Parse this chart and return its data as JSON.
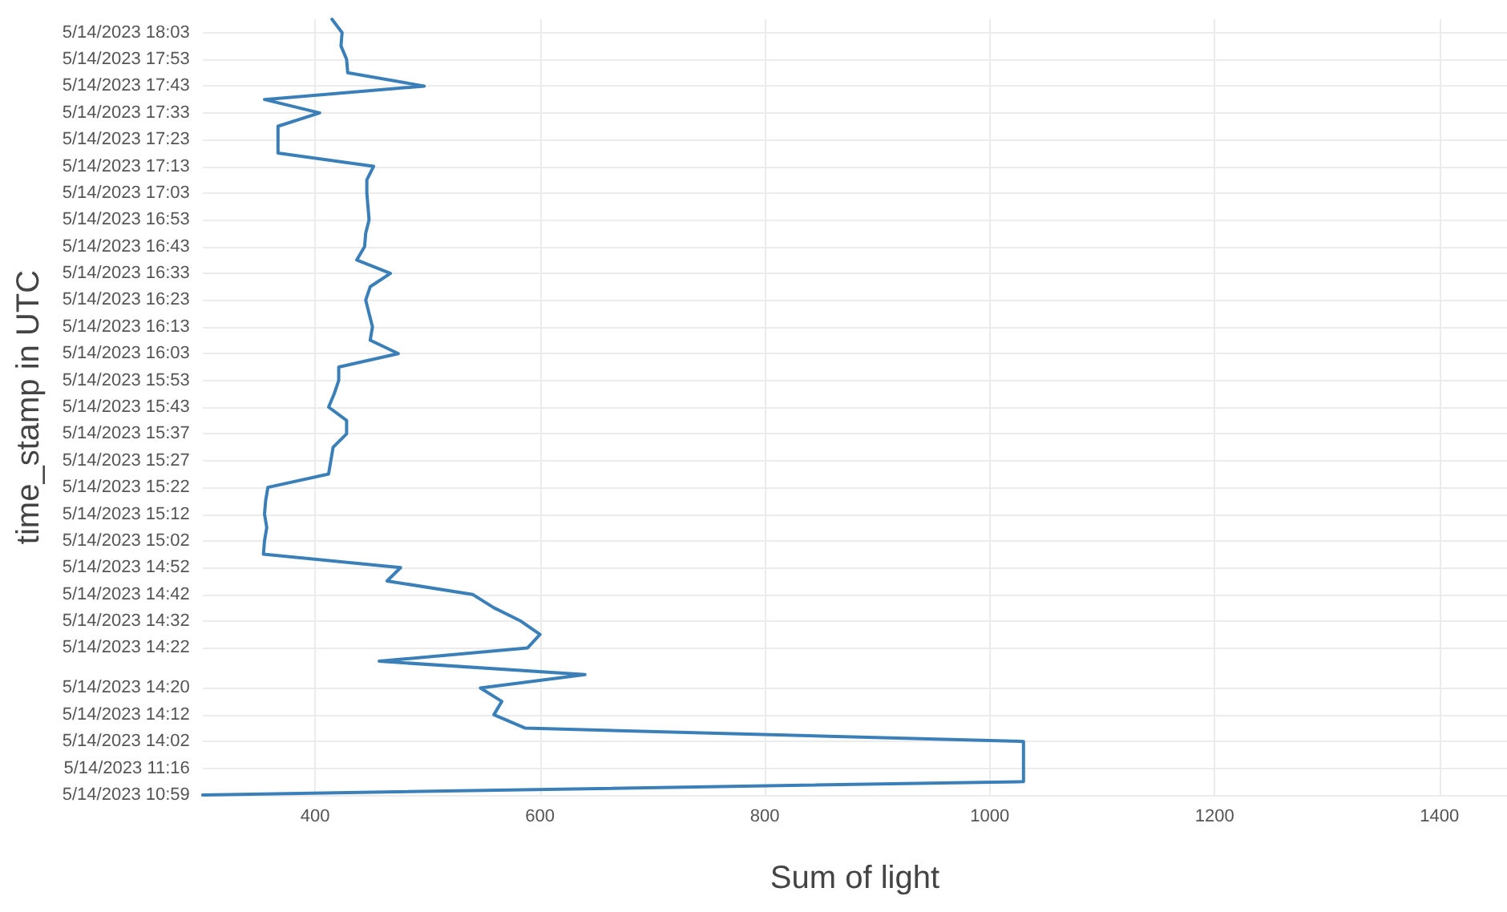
{
  "chart_data": {
    "type": "line",
    "orientation": "horizontal",
    "xlabel": "Sum of light",
    "ylabel": "time_stamp in UTC",
    "categories": [
      null,
      "5/14/2023 18:03",
      null,
      "5/14/2023 17:53",
      null,
      "5/14/2023 17:43",
      null,
      "5/14/2023 17:33",
      null,
      "5/14/2023 17:23",
      null,
      "5/14/2023 17:13",
      null,
      "5/14/2023 17:03",
      null,
      "5/14/2023 16:53",
      null,
      "5/14/2023 16:43",
      null,
      "5/14/2023 16:33",
      null,
      "5/14/2023 16:23",
      null,
      "5/14/2023 16:13",
      null,
      "5/14/2023 16:03",
      null,
      "5/14/2023 15:53",
      null,
      "5/14/2023 15:43",
      null,
      "5/14/2023 15:37",
      null,
      "5/14/2023 15:27",
      null,
      "5/14/2023 15:22",
      null,
      "5/14/2023 15:12",
      null,
      "5/14/2023 15:02",
      null,
      "5/14/2023 14:52",
      null,
      "5/14/2023 14:42",
      null,
      "5/14/2023 14:32",
      null,
      "5/14/2023 14:22",
      null,
      null,
      "5/14/2023 14:20",
      null,
      "5/14/2023 14:12",
      null,
      "5/14/2023 14:02",
      null,
      "5/14/2023 11:16",
      null,
      "5/14/2023 10:59"
    ],
    "series": [
      {
        "color": "#3a7fb8",
        "values": [
          415,
          424,
          423,
          428,
          429,
          497,
          355,
          404,
          367,
          367,
          367,
          452,
          446,
          446,
          447,
          448,
          445,
          444,
          437,
          467,
          449,
          445,
          448,
          451,
          449,
          474,
          421,
          421,
          417,
          412,
          428,
          428,
          416,
          414,
          412,
          358,
          356,
          355,
          357,
          355,
          354,
          476,
          464,
          540,
          559,
          583,
          600,
          589,
          457,
          640,
          547,
          566,
          559,
          587,
          1030,
          1030,
          1030,
          1030,
          300
        ]
      }
    ],
    "xlim": [
      300,
      1460
    ],
    "xticks": [
      400,
      600,
      800,
      1000,
      1200,
      1400
    ],
    "grid": true,
    "marker": "none",
    "line_style": "solid"
  }
}
